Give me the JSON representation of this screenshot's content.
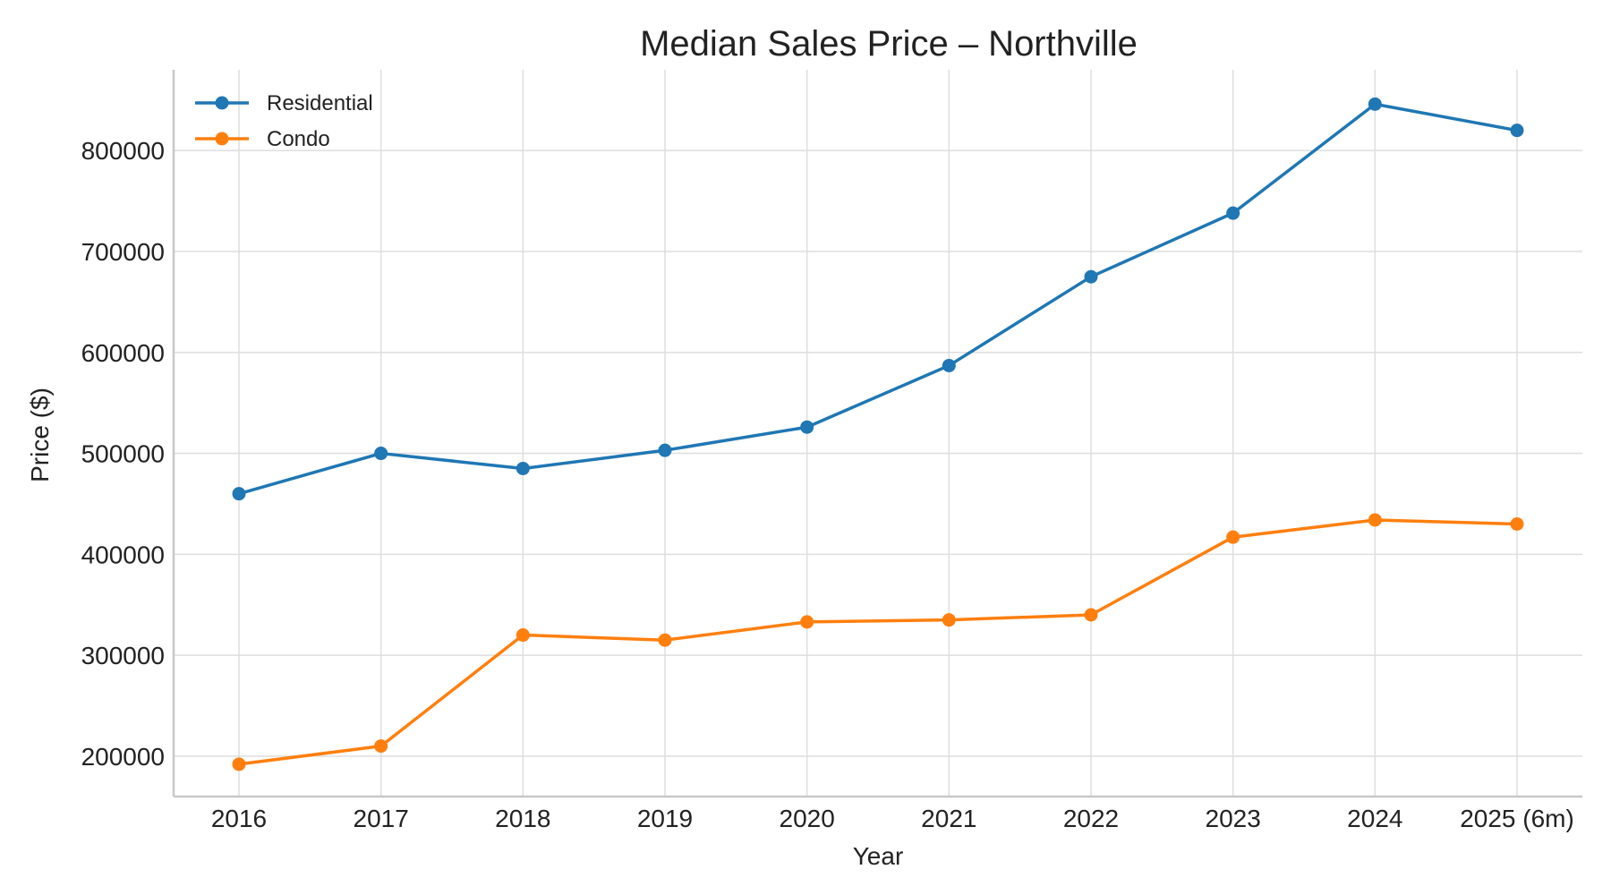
{
  "chart_data": {
    "type": "line",
    "title": "Median Sales Price – Northville",
    "xlabel": "Year",
    "ylabel": "Price ($)",
    "categories": [
      "2016",
      "2017",
      "2018",
      "2019",
      "2020",
      "2021",
      "2022",
      "2023",
      "2024",
      "2025 (6m)"
    ],
    "yticks": [
      200000,
      300000,
      400000,
      500000,
      600000,
      700000,
      800000
    ],
    "ylim": [
      160000,
      880000
    ],
    "grid": true,
    "legend_position": "top-left",
    "series": [
      {
        "name": "Residential",
        "color": "#1f77b4",
        "values": [
          460000,
          500000,
          485000,
          503000,
          526000,
          587000,
          675000,
          738000,
          846000,
          820000
        ]
      },
      {
        "name": "Condo",
        "color": "#ff7f0e",
        "values": [
          192000,
          210000,
          320000,
          315000,
          333000,
          335000,
          340000,
          417000,
          434000,
          430000
        ]
      }
    ]
  }
}
